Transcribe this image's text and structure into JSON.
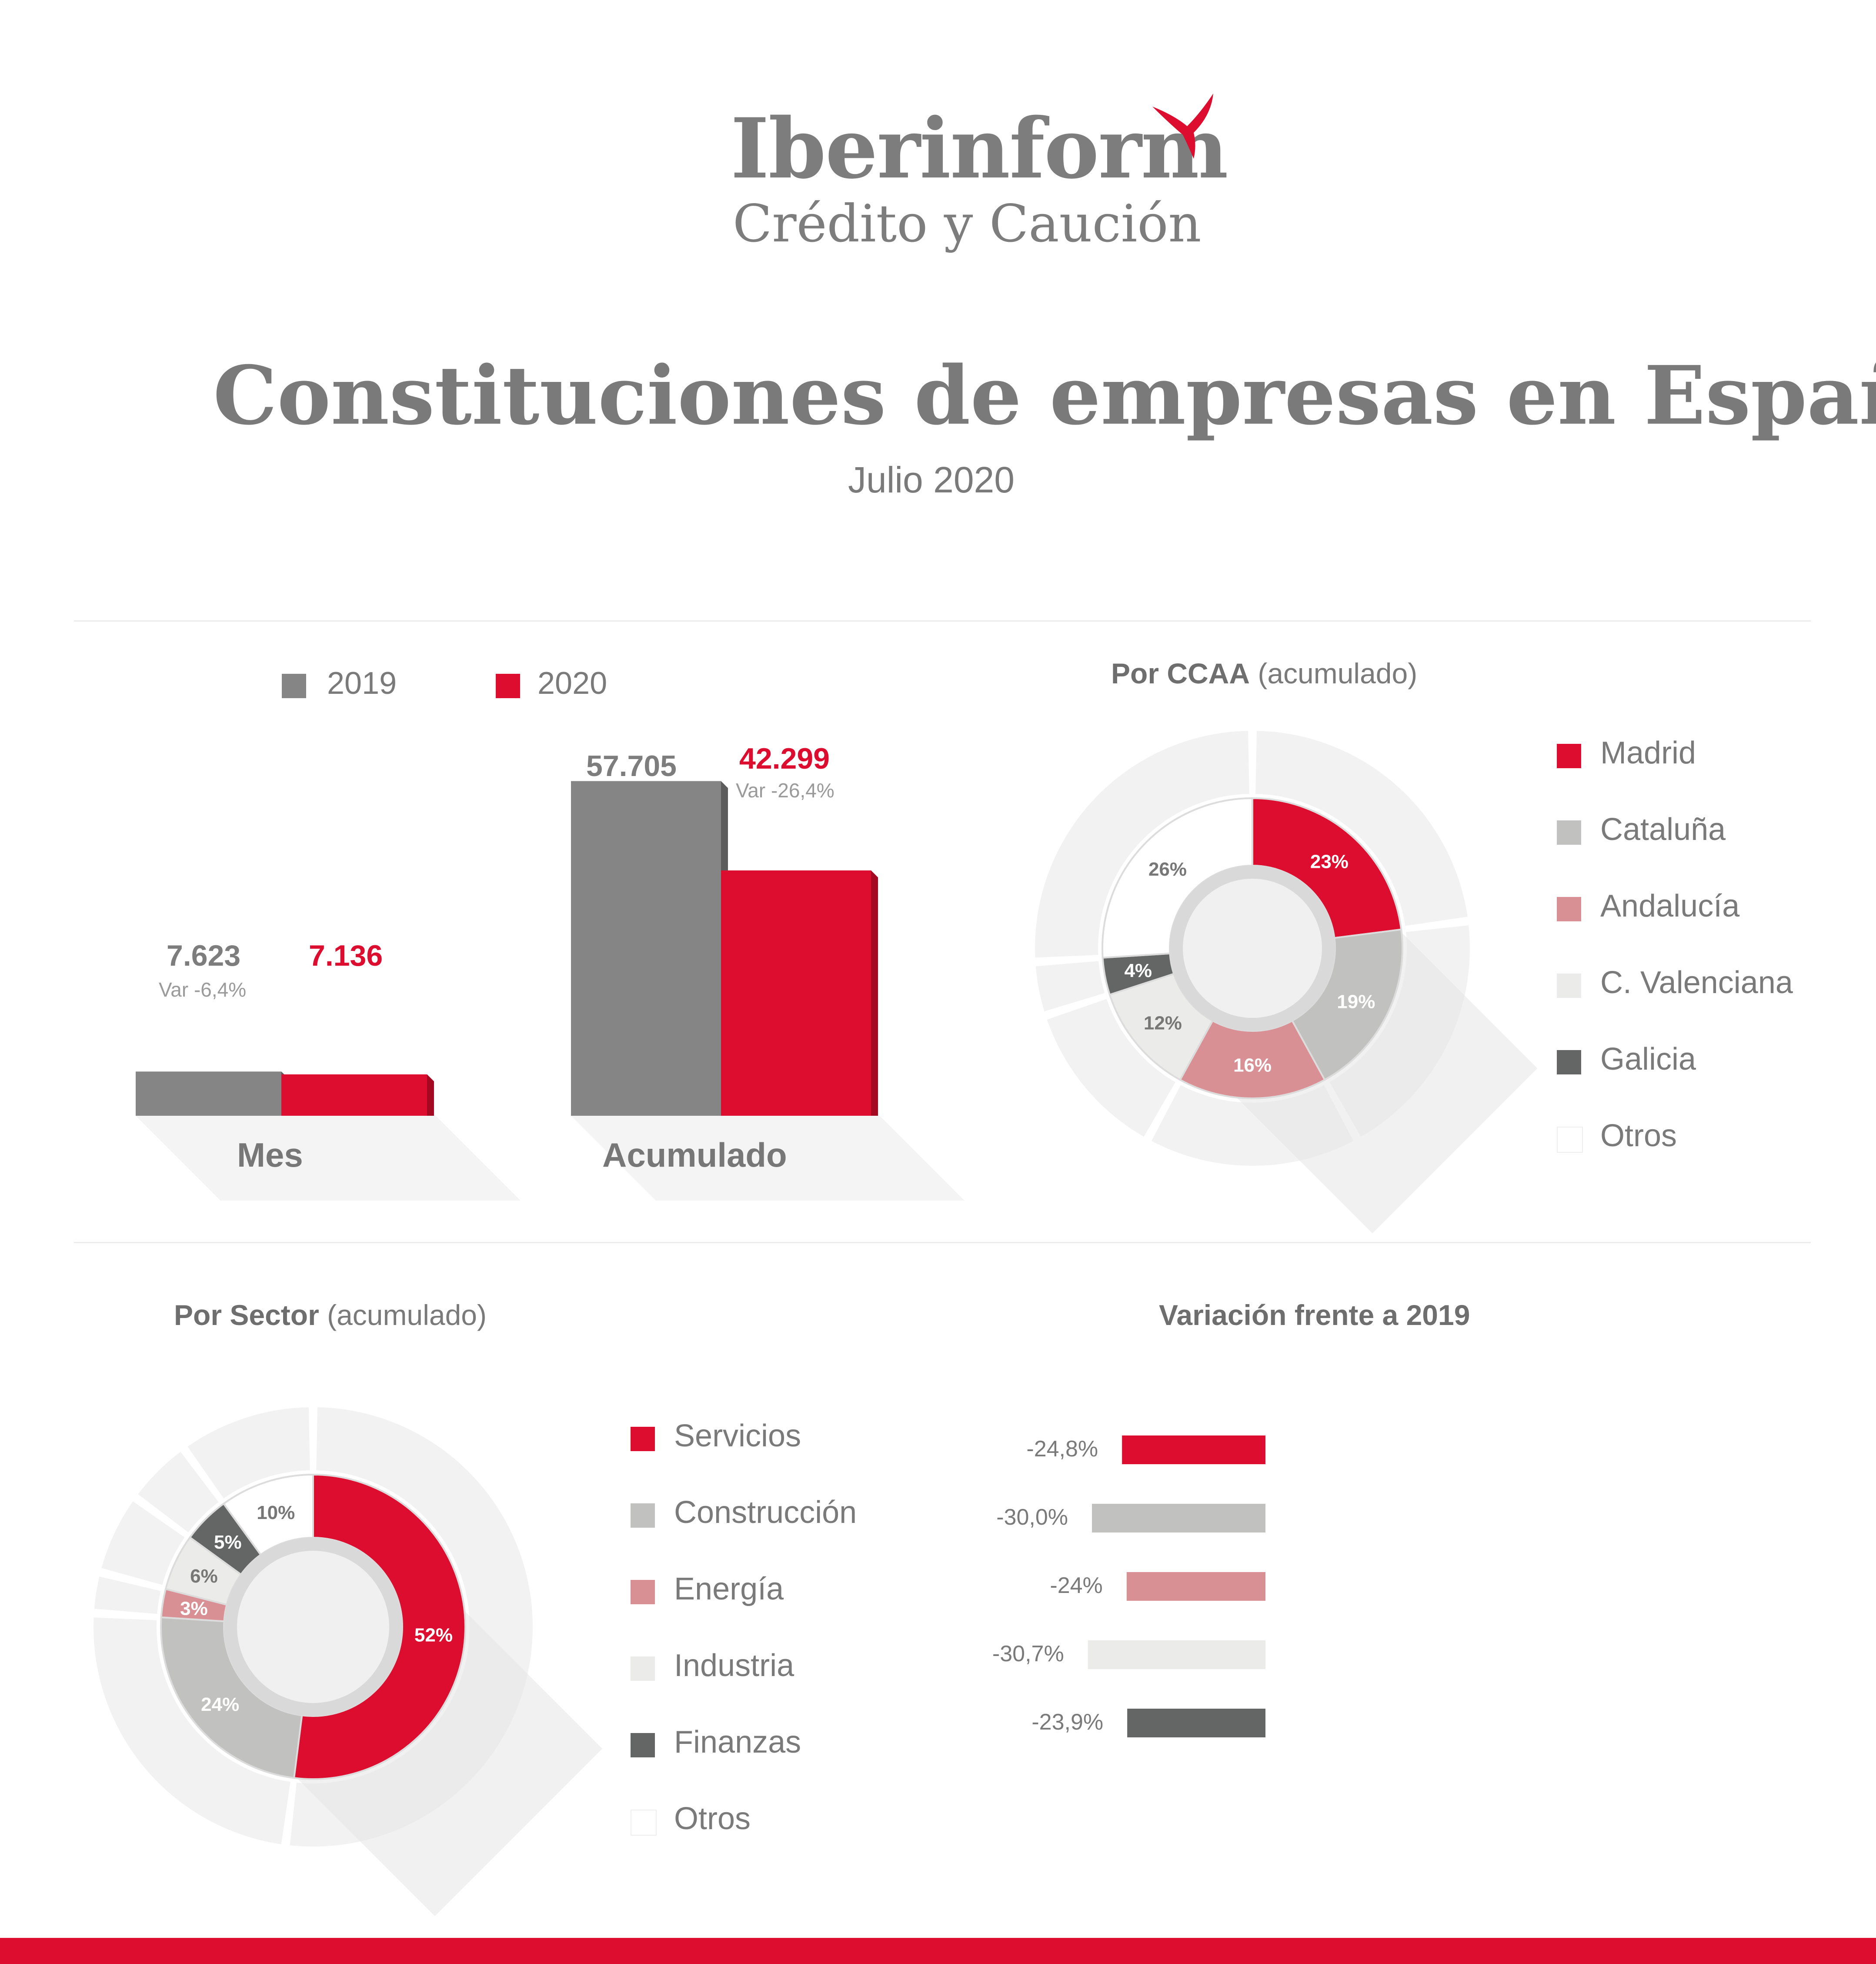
{
  "logo": {
    "word": "Iberinform",
    "sub": "Crédito y Caución"
  },
  "title": "Constituciones de empresas en España",
  "subtitle": "Julio 2020",
  "bar_legend": [
    {
      "label": "2019",
      "color": "#858585"
    },
    {
      "label": "2020",
      "color": "#dc0d2e"
    }
  ],
  "ccaa": {
    "title_bold": "Por CCAA",
    "title_rest": " (acumulado)",
    "legend": [
      {
        "label": "Madrid",
        "color": "#dc0d2e"
      },
      {
        "label": "Cataluña",
        "color": "#c1c1bf"
      },
      {
        "label": "Andalucía",
        "color": "#d99095"
      },
      {
        "label": "C. Valenciana",
        "color": "#ebebe9"
      },
      {
        "label": "Galicia",
        "color": "#646665"
      },
      {
        "label": "Otros",
        "color": "#ffffff"
      }
    ]
  },
  "sector": {
    "title_bold": "Por Sector",
    "title_rest": " (acumulado)",
    "legend": [
      {
        "label": "Servicios",
        "color": "#dc0d2e"
      },
      {
        "label": "Construcción",
        "color": "#c1c1bf"
      },
      {
        "label": "Energía",
        "color": "#d99095"
      },
      {
        "label": "Industria",
        "color": "#ebebe9"
      },
      {
        "label": "Finanzas",
        "color": "#646665"
      },
      {
        "label": "Otros",
        "color": "#ffffff"
      }
    ]
  },
  "variation": {
    "title": "Variación frente a 2019"
  },
  "chart_data": [
    {
      "type": "bar",
      "categories": [
        "Mes",
        "Acumulado"
      ],
      "series": [
        {
          "name": "2019",
          "values": [
            7623,
            57705
          ],
          "labels": [
            "7.623",
            "57.705"
          ]
        },
        {
          "name": "2020",
          "values": [
            7136,
            42299
          ],
          "labels": [
            "7.136",
            "42.299"
          ]
        }
      ],
      "annotations": [
        "Var -6,4%",
        "Var -26,4%"
      ],
      "ylim": [
        0,
        60000
      ]
    },
    {
      "type": "pie",
      "title": "Por CCAA (acumulado)",
      "categories": [
        "Madrid",
        "Cataluña",
        "Andalucía",
        "C. Valenciana",
        "Galicia",
        "Otros"
      ],
      "values": [
        23,
        19,
        16,
        12,
        4,
        26
      ],
      "labels": [
        "23%",
        "19%",
        "16%",
        "12%",
        "4%",
        "26%"
      ]
    },
    {
      "type": "pie",
      "title": "Por Sector (acumulado)",
      "categories": [
        "Servicios",
        "Construcción",
        "Energía",
        "Industria",
        "Finanzas",
        "Otros"
      ],
      "values": [
        52,
        24,
        3,
        6,
        5,
        10
      ],
      "labels": [
        "52%",
        "24%",
        "3%",
        "6%",
        "5%",
        "10%"
      ]
    },
    {
      "type": "bar",
      "title": "Variación frente a 2019",
      "categories": [
        "Servicios",
        "Construcción",
        "Energía",
        "Industria",
        "Finanzas"
      ],
      "values": [
        -24.8,
        -30.0,
        -24,
        -30.7,
        -23.9
      ],
      "labels": [
        "-24,8%",
        "-30,0%",
        "-24%",
        "-30,7%",
        "-23,9%"
      ]
    }
  ]
}
